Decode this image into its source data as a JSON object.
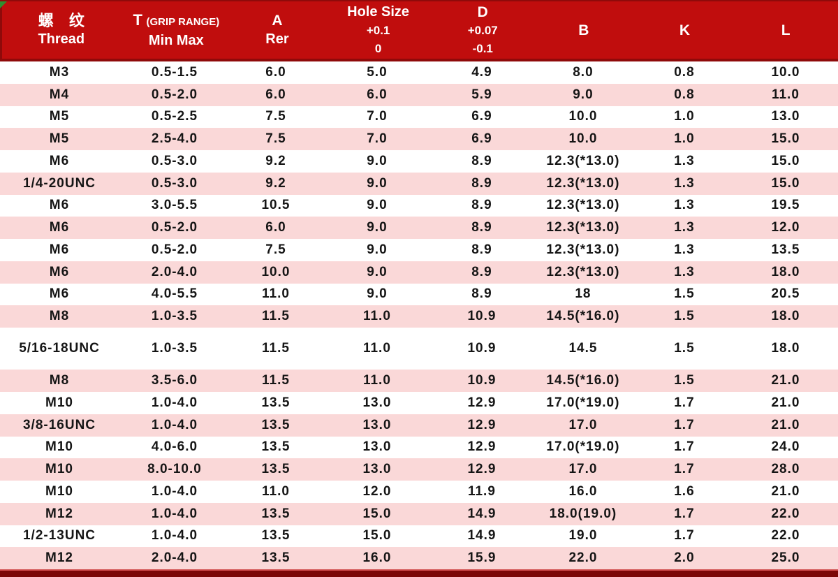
{
  "colors": {
    "header_bg": "#c00d0d",
    "header_border": "#8f0a0a",
    "row_pink": "#fad8d8",
    "row_white": "#ffffff",
    "bottom_bar": "#7c0707",
    "body_text": "#151515",
    "header_text": "#ffffff",
    "corner_marker_green": "#2f8f2f"
  },
  "table": {
    "header": {
      "columns": [
        {
          "zh": "螺 纹",
          "en": "Thread"
        },
        {
          "symbol": "T",
          "qualifier": "(GRIP RANGE)",
          "sub": "Min Max"
        },
        {
          "symbol": "A",
          "sub": "Rer"
        },
        {
          "title": "Hole Size",
          "tol_upper": "+0.1",
          "tol_lower": "0"
        },
        {
          "symbol": "D",
          "tol_upper": "+0.07",
          "tol_lower": "-0.1"
        },
        {
          "symbol": "B"
        },
        {
          "symbol": "K"
        },
        {
          "symbol": "L"
        }
      ]
    },
    "rows": [
      {
        "cells": [
          "M3",
          "0.5-1.5",
          "6.0",
          "5.0",
          "4.9",
          "8.0",
          "0.8",
          "10.0"
        ]
      },
      {
        "cells": [
          "M4",
          "0.5-2.0",
          "6.0",
          "6.0",
          "5.9",
          "9.0",
          "0.8",
          "11.0"
        ]
      },
      {
        "cells": [
          "M5",
          "0.5-2.5",
          "7.5",
          "7.0",
          "6.9",
          "10.0",
          "1.0",
          "13.0"
        ]
      },
      {
        "cells": [
          "M5",
          "2.5-4.0",
          "7.5",
          "7.0",
          "6.9",
          "10.0",
          "1.0",
          "15.0"
        ]
      },
      {
        "cells": [
          "M6",
          "0.5-3.0",
          "9.2",
          "9.0",
          "8.9",
          "12.3(*13.0)",
          "1.3",
          "15.0"
        ]
      },
      {
        "cells": [
          "1/4-20UNC",
          "0.5-3.0",
          "9.2",
          "9.0",
          "8.9",
          "12.3(*13.0)",
          "1.3",
          "15.0"
        ]
      },
      {
        "cells": [
          "M6",
          "3.0-5.5",
          "10.5",
          "9.0",
          "8.9",
          "12.3(*13.0)",
          "1.3",
          "19.5"
        ]
      },
      {
        "cells": [
          "M6",
          "0.5-2.0",
          "6.0",
          "9.0",
          "8.9",
          "12.3(*13.0)",
          "1.3",
          "12.0"
        ]
      },
      {
        "cells": [
          "M6",
          "0.5-2.0",
          "7.5",
          "9.0",
          "8.9",
          "12.3(*13.0)",
          "1.3",
          "13.5"
        ]
      },
      {
        "cells": [
          "M6",
          "2.0-4.0",
          "10.0",
          "9.0",
          "8.9",
          "12.3(*13.0)",
          "1.3",
          "18.0"
        ]
      },
      {
        "cells": [
          "M6",
          "4.0-5.5",
          "11.0",
          "9.0",
          "8.9",
          "18",
          "1.5",
          "20.5"
        ]
      },
      {
        "cells": [
          "M8",
          "1.0-3.5",
          "11.5",
          "11.0",
          "10.9",
          "14.5(*16.0)",
          "1.5",
          "18.0"
        ]
      },
      {
        "cells": [
          "5/16-18UNC",
          "1.0-3.5",
          "11.5",
          "11.0",
          "10.9",
          "14.5",
          "1.5",
          "18.0"
        ],
        "tall": true
      },
      {
        "cells": [
          "M8",
          "3.5-6.0",
          "11.5",
          "11.0",
          "10.9",
          "14.5(*16.0)",
          "1.5",
          "21.0"
        ]
      },
      {
        "cells": [
          "M10",
          "1.0-4.0",
          "13.5",
          "13.0",
          "12.9",
          "17.0(*19.0)",
          "1.7",
          "21.0"
        ]
      },
      {
        "cells": [
          "3/8-16UNC",
          "1.0-4.0",
          "13.5",
          "13.0",
          "12.9",
          "17.0",
          "1.7",
          "21.0"
        ]
      },
      {
        "cells": [
          "M10",
          "4.0-6.0",
          "13.5",
          "13.0",
          "12.9",
          "17.0(*19.0)",
          "1.7",
          "24.0"
        ]
      },
      {
        "cells": [
          "M10",
          "8.0-10.0",
          "13.5",
          "13.0",
          "12.9",
          "17.0",
          "1.7",
          "28.0"
        ]
      },
      {
        "cells": [
          "M10",
          "1.0-4.0",
          "11.0",
          "12.0",
          "11.9",
          "16.0",
          "1.6",
          "21.0"
        ]
      },
      {
        "cells": [
          "M12",
          "1.0-4.0",
          "13.5",
          "15.0",
          "14.9",
          "18.0(19.0)",
          "1.7",
          "22.0"
        ]
      },
      {
        "cells": [
          "1/2-13UNC",
          "1.0-4.0",
          "13.5",
          "15.0",
          "14.9",
          "19.0",
          "1.7",
          "22.0"
        ]
      },
      {
        "cells": [
          "M12",
          "2.0-4.0",
          "13.5",
          "16.0",
          "15.9",
          "22.0",
          "2.0",
          "25.0"
        ]
      }
    ]
  }
}
